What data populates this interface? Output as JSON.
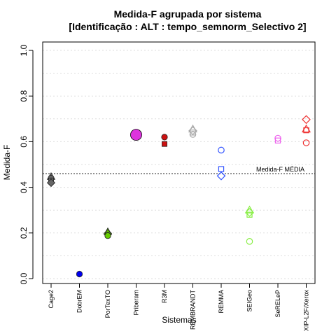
{
  "chart_data": {
    "type": "scatter",
    "title": "Medida-F agrupada por sistema",
    "subtitle": "[Identificação : ALT : tempo_semnorm_Selectivo 2]",
    "xlabel": "Sistemas",
    "ylabel": "Medida-F",
    "ylim": [
      0.0,
      1.0
    ],
    "yticks": [
      "0.0",
      "0.2",
      "0.4",
      "0.6",
      "0.8",
      "1.0"
    ],
    "grid": "horizontal-dotted",
    "categories": [
      "Cage2",
      "DobrEM",
      "PorTexTO",
      "Priberam",
      "R3M",
      "REMBRANDT",
      "REMMA",
      "SEIGeo",
      "SeRELeP",
      "XIP-L2F/Xerox"
    ],
    "reference_line": {
      "label": "Medida-F MÉDIA",
      "value": 0.46
    },
    "points": [
      {
        "system": "Cage2",
        "y": 0.447,
        "shape": "triangle",
        "color": "#666666",
        "filled": true,
        "size": "small"
      },
      {
        "system": "Cage2",
        "y": 0.44,
        "shape": "circle",
        "color": "#666666",
        "filled": true,
        "size": "small"
      },
      {
        "system": "Cage2",
        "y": 0.43,
        "shape": "square",
        "color": "#666666",
        "filled": true,
        "size": "small"
      },
      {
        "system": "Cage2",
        "y": 0.42,
        "shape": "diamond",
        "color": "#666666",
        "filled": true,
        "size": "small"
      },
      {
        "system": "DobrEM",
        "y": 0.02,
        "shape": "circle",
        "color": "#0000ee",
        "filled": true,
        "size": "small"
      },
      {
        "system": "PorTexTO",
        "y": 0.205,
        "shape": "triangle",
        "color": "#66cc00",
        "filled": true,
        "size": "small"
      },
      {
        "system": "PorTexTO",
        "y": 0.198,
        "shape": "diamond",
        "color": "#66cc00",
        "filled": true,
        "size": "small"
      },
      {
        "system": "PorTexTO",
        "y": 0.192,
        "shape": "square",
        "color": "#66cc00",
        "filled": true,
        "size": "small"
      },
      {
        "system": "PorTexTO",
        "y": 0.188,
        "shape": "circle",
        "color": "#66cc00",
        "filled": true,
        "size": "small"
      },
      {
        "system": "Priberam",
        "y": 0.63,
        "shape": "circle",
        "color": "#dd33dd",
        "filled": true,
        "size": "large"
      },
      {
        "system": "R3M",
        "y": 0.62,
        "shape": "circle",
        "color": "#cc1111",
        "filled": true,
        "size": "small"
      },
      {
        "system": "R3M",
        "y": 0.59,
        "shape": "square",
        "color": "#cc1111",
        "filled": true,
        "size": "small"
      },
      {
        "system": "REMBRANDT",
        "y": 0.655,
        "shape": "triangle",
        "color": "#aaaaaa",
        "filled": false,
        "size": "small"
      },
      {
        "system": "REMBRANDT",
        "y": 0.648,
        "shape": "diamond",
        "color": "#aaaaaa",
        "filled": false,
        "size": "small"
      },
      {
        "system": "REMBRANDT",
        "y": 0.64,
        "shape": "square",
        "color": "#aaaaaa",
        "filled": false,
        "size": "small"
      },
      {
        "system": "REMBRANDT",
        "y": 0.632,
        "shape": "circle",
        "color": "#aaaaaa",
        "filled": false,
        "size": "small"
      },
      {
        "system": "REMMA",
        "y": 0.563,
        "shape": "circle",
        "color": "#3355ff",
        "filled": false,
        "size": "small"
      },
      {
        "system": "REMMA",
        "y": 0.48,
        "shape": "square",
        "color": "#3355ff",
        "filled": false,
        "size": "small"
      },
      {
        "system": "REMMA",
        "y": 0.45,
        "shape": "diamond",
        "color": "#3355ff",
        "filled": false,
        "size": "small"
      },
      {
        "system": "SEIGeo",
        "y": 0.3,
        "shape": "triangle",
        "color": "#88ee44",
        "filled": false,
        "size": "small"
      },
      {
        "system": "SEIGeo",
        "y": 0.29,
        "shape": "diamond",
        "color": "#88ee44",
        "filled": false,
        "size": "small"
      },
      {
        "system": "SEIGeo",
        "y": 0.28,
        "shape": "square",
        "color": "#88ee44",
        "filled": false,
        "size": "small"
      },
      {
        "system": "SEIGeo",
        "y": 0.163,
        "shape": "circle",
        "color": "#88ee44",
        "filled": false,
        "size": "small"
      },
      {
        "system": "SeRELeP",
        "y": 0.615,
        "shape": "circle",
        "color": "#ee66ee",
        "filled": false,
        "size": "small"
      },
      {
        "system": "SeRELeP",
        "y": 0.605,
        "shape": "square",
        "color": "#ee66ee",
        "filled": false,
        "size": "small"
      },
      {
        "system": "XIP-L2F/Xerox",
        "y": 0.697,
        "shape": "diamond",
        "color": "#ee3333",
        "filled": false,
        "size": "small"
      },
      {
        "system": "XIP-L2F/Xerox",
        "y": 0.655,
        "shape": "triangle",
        "color": "#ee3333",
        "filled": false,
        "size": "small"
      },
      {
        "system": "XIP-L2F/Xerox",
        "y": 0.65,
        "shape": "square",
        "color": "#ee3333",
        "filled": false,
        "size": "small"
      },
      {
        "system": "XIP-L2F/Xerox",
        "y": 0.595,
        "shape": "circle",
        "color": "#ee3333",
        "filled": false,
        "size": "small"
      }
    ]
  }
}
